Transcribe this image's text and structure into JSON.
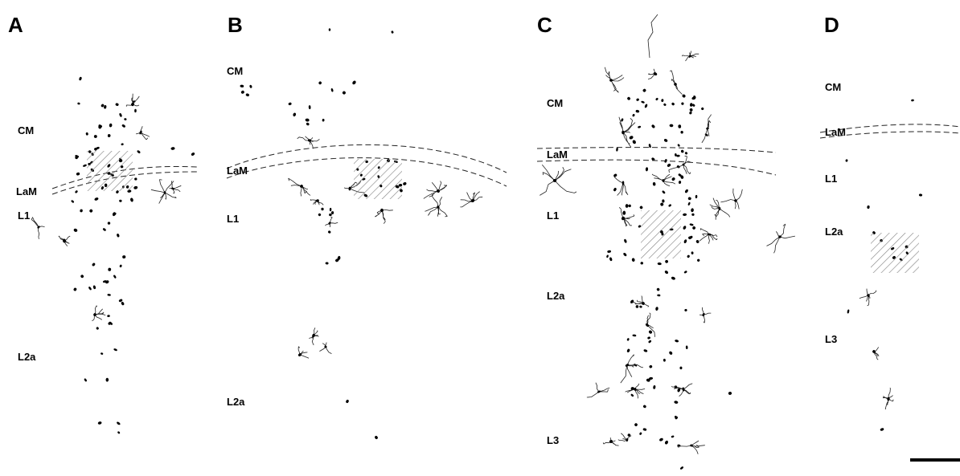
{
  "panels": [
    {
      "letter": "A",
      "labels": [
        "CM",
        "LaM",
        "L1",
        "L2a"
      ]
    },
    {
      "letter": "B",
      "labels": [
        "CM",
        "LaM",
        "L1",
        "L2a"
      ]
    },
    {
      "letter": "C",
      "labels": [
        "CM",
        "LaM",
        "L1",
        "L2a",
        "L3"
      ]
    },
    {
      "letter": "D",
      "labels": [
        "CM",
        "LaM",
        "L1",
        "L2a",
        "L3"
      ]
    }
  ]
}
